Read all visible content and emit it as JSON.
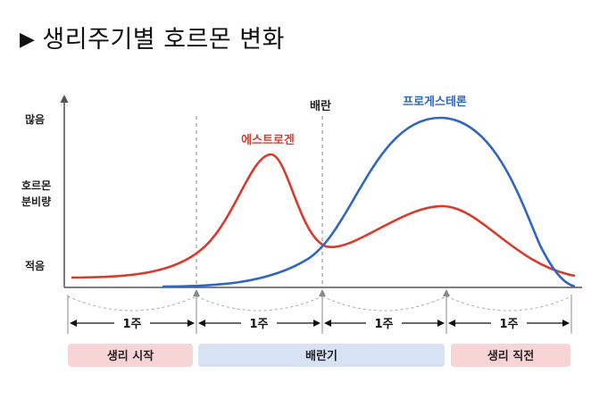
{
  "title": "생리주기별 호르몬 변화",
  "y_axis": {
    "high": "많음",
    "middle": [
      "호르몬",
      "분비량"
    ],
    "low": "적음"
  },
  "markers": {
    "ovulation": "배란"
  },
  "series": [
    {
      "name": "에스트로겐",
      "color": "#d93a2b"
    },
    {
      "name": "프로게스테론",
      "color": "#2f66c4"
    }
  ],
  "weeks": [
    "1주",
    "1주",
    "1주",
    "1주"
  ],
  "phases": [
    {
      "label": "생리 시작",
      "color": "#f7d5d7"
    },
    {
      "label": "배란기",
      "color": "#d8e2f5"
    },
    {
      "label": "생리 직전",
      "color": "#f7d5d7"
    }
  ],
  "colors": {
    "axis": "#555555",
    "dashed": "#888888",
    "week_arc": "#aaaaaa"
  }
}
